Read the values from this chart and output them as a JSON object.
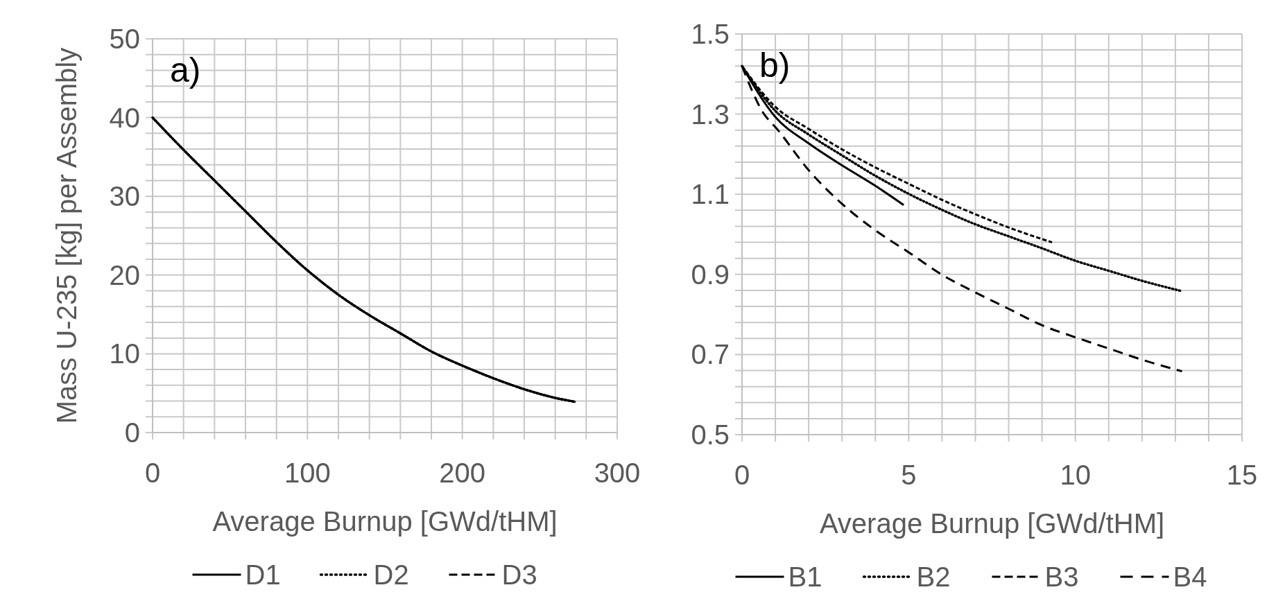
{
  "chart_data": [
    {
      "type": "line",
      "xlabel": "Average Burnup [GWd/tHM]",
      "ylabel": "Mass U-235 [kg] per Assembly",
      "annotations": [
        "a)"
      ],
      "xlim": [
        0,
        300
      ],
      "ylim": [
        0,
        50
      ],
      "xticks": [
        0,
        {
          "value": 20,
          "label": null
        },
        {
          "value": 40,
          "label": null
        },
        {
          "value": 60,
          "label": null
        },
        {
          "value": 80,
          "label": null
        },
        100,
        {
          "value": 120,
          "label": null
        },
        {
          "value": 140,
          "label": null
        },
        {
          "value": 160,
          "label": null
        },
        {
          "value": 180,
          "label": null
        },
        200,
        {
          "value": 220,
          "label": null
        },
        {
          "value": 240,
          "label": null
        },
        {
          "value": 260,
          "label": null
        },
        {
          "value": 280,
          "label": null
        },
        300
      ],
      "yticks": [
        0,
        {
          "value": 2,
          "label": null
        },
        {
          "value": 4,
          "label": null
        },
        {
          "value": 6,
          "label": null
        },
        {
          "value": 8,
          "label": null
        },
        10,
        {
          "value": 12,
          "label": null
        },
        {
          "value": 14,
          "label": null
        },
        {
          "value": 16,
          "label": null
        },
        {
          "value": 18,
          "label": null
        },
        20,
        {
          "value": 22,
          "label": null
        },
        {
          "value": 24,
          "label": null
        },
        {
          "value": 26,
          "label": null
        },
        {
          "value": 28,
          "label": null
        },
        30,
        {
          "value": 32,
          "label": null
        },
        {
          "value": 34,
          "label": null
        },
        {
          "value": 36,
          "label": null
        },
        {
          "value": 38,
          "label": null
        },
        40,
        {
          "value": 42,
          "label": null
        },
        {
          "value": 44,
          "label": null
        },
        {
          "value": 46,
          "label": null
        },
        {
          "value": 48,
          "label": null
        },
        50
      ],
      "grid": true,
      "legend": "bottom",
      "x": [
        0,
        20,
        40,
        60,
        80,
        100,
        120,
        140,
        160,
        180,
        200,
        220,
        240,
        260,
        273
      ],
      "series": [
        {
          "name": "D1",
          "color": "#000000",
          "line_style": "solid",
          "values": [
            40,
            35.9,
            32,
            28.1,
            24.2,
            20.6,
            17.5,
            14.9,
            12.6,
            10.3,
            8.5,
            6.9,
            5.5,
            4.4,
            3.9
          ]
        },
        {
          "name": "D2",
          "color": "#000000",
          "line_style": "dotted",
          "values": [
            40,
            35.9,
            32,
            28.1,
            24.2,
            20.6,
            17.5,
            14.9,
            12.6,
            10.3,
            8.5,
            6.9,
            5.5,
            4.4,
            3.9
          ]
        },
        {
          "name": "D3",
          "color": "#000000",
          "line_style": "dashed",
          "values": [
            40,
            35.9,
            32,
            28.1,
            24.2,
            20.6,
            17.5,
            14.9,
            12.6,
            10.3,
            8.5,
            6.9,
            5.5,
            4.4,
            3.9
          ]
        }
      ]
    },
    {
      "type": "line",
      "xlabel": "Average Burnup [GWd/tHM]",
      "annotations": [
        "b)"
      ],
      "xlim": [
        0,
        15
      ],
      "ylim": [
        0.5,
        1.5
      ],
      "xticks": [
        0,
        {
          "value": 1,
          "label": null
        },
        {
          "value": 2,
          "label": null
        },
        {
          "value": 3,
          "label": null
        },
        {
          "value": 4,
          "label": null
        },
        5,
        {
          "value": 6,
          "label": null
        },
        {
          "value": 7,
          "label": null
        },
        {
          "value": 8,
          "label": null
        },
        {
          "value": 9,
          "label": null
        },
        10,
        {
          "value": 11,
          "label": null
        },
        {
          "value": 12,
          "label": null
        },
        {
          "value": 13,
          "label": null
        },
        {
          "value": 14,
          "label": null
        },
        15
      ],
      "yticks": [
        0.5,
        {
          "value": 0.54,
          "label": null
        },
        {
          "value": 0.58,
          "label": null
        },
        {
          "value": 0.62,
          "label": null
        },
        {
          "value": 0.66,
          "label": null
        },
        0.7,
        {
          "value": 0.74,
          "label": null
        },
        {
          "value": 0.78,
          "label": null
        },
        {
          "value": 0.82,
          "label": null
        },
        {
          "value": 0.86,
          "label": null
        },
        0.9,
        {
          "value": 0.94,
          "label": null
        },
        {
          "value": 0.98,
          "label": null
        },
        {
          "value": 1.02,
          "label": null
        },
        {
          "value": 1.06,
          "label": null
        },
        1.1,
        {
          "value": 1.14,
          "label": null
        },
        {
          "value": 1.18,
          "label": null
        },
        {
          "value": 1.22,
          "label": null
        },
        {
          "value": 1.26,
          "label": null
        },
        1.3,
        {
          "value": 1.34,
          "label": null
        },
        {
          "value": 1.38,
          "label": null
        },
        {
          "value": 1.42,
          "label": null
        },
        {
          "value": 1.46,
          "label": null
        },
        1.5
      ],
      "grid": true,
      "legend": "bottom",
      "series": [
        {
          "name": "B1",
          "color": "#000000",
          "line_style": "solid",
          "x": [
            0,
            1,
            2,
            3,
            4,
            4.85
          ],
          "values": [
            1.42,
            1.293,
            1.227,
            1.172,
            1.121,
            1.073
          ]
        },
        {
          "name": "B2",
          "color": "#000000",
          "line_style": "dotted",
          "x": [
            0,
            1,
            2,
            3,
            4,
            5,
            6,
            7,
            8,
            9,
            10,
            11,
            12,
            13.2
          ],
          "values": [
            1.42,
            1.308,
            1.249,
            1.197,
            1.146,
            1.101,
            1.061,
            1.025,
            0.995,
            0.965,
            0.934,
            0.909,
            0.884,
            0.858
          ]
        },
        {
          "name": "B3",
          "color": "#000000",
          "line_style": "dashed",
          "x": [
            0,
            1,
            2,
            3,
            4,
            5,
            6,
            7,
            8,
            9.3
          ],
          "values": [
            1.42,
            1.318,
            1.263,
            1.212,
            1.167,
            1.126,
            1.086,
            1.05,
            1.017,
            0.98
          ]
        },
        {
          "name": "B4",
          "color": "#000000",
          "line_style": "longdash",
          "x": [
            0,
            0.6,
            1.1,
            2,
            3,
            4,
            5,
            6,
            7,
            8,
            9,
            10,
            11,
            12,
            13.2
          ],
          "values": [
            1.42,
            1.308,
            1.258,
            1.16,
            1.076,
            1.01,
            0.955,
            0.899,
            0.855,
            0.814,
            0.773,
            0.743,
            0.715,
            0.687,
            0.658
          ]
        }
      ]
    }
  ]
}
